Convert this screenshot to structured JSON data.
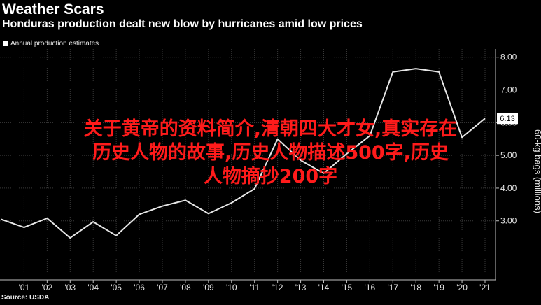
{
  "header": {
    "title": "Weather Scars",
    "subtitle": "Honduras production dealt new blow by hurricanes amid low prices",
    "legend_label": "Annual production estimates",
    "source": "Source: USDA"
  },
  "overlay": {
    "lines": [
      "关于黄帝的资料简介,清朝四大才女,真实存在",
      "历史人物的故事,历史人物描述500字,历史",
      "人物摘抄200字"
    ],
    "color": "#ff1b1b"
  },
  "colors": {
    "background": "#000000",
    "line": "#e6e6e6",
    "grid": "#3a3a3a",
    "axis": "#bfbfbf"
  },
  "chart_data": {
    "type": "line",
    "x": [
      "00",
      "01",
      "02",
      "03",
      "04",
      "05",
      "06",
      "07",
      "08",
      "09",
      "10",
      "11",
      "12",
      "13",
      "14",
      "15",
      "16",
      "17",
      "18",
      "19",
      "20",
      "21"
    ],
    "x_tick_labels": [
      "'01",
      "'02",
      "'03",
      "'04",
      "'05",
      "'06",
      "'07",
      "'08",
      "'09",
      "'10",
      "'11",
      "'12",
      "'13",
      "'14",
      "'15",
      "'16",
      "'17",
      "'18",
      "'19",
      "'20",
      "'21"
    ],
    "values": [
      3.05,
      2.8,
      3.08,
      2.48,
      2.97,
      2.55,
      3.2,
      3.45,
      3.63,
      3.22,
      3.55,
      3.98,
      5.5,
      4.85,
      4.45,
      5.05,
      5.6,
      7.55,
      7.65,
      7.55,
      5.55,
      6.13
    ],
    "last_value_label": "6.13",
    "y_ticks": [
      3,
      4,
      5,
      6,
      7,
      8
    ],
    "y_tick_labels": [
      "3.00",
      "4.00",
      "5.00",
      "6.00",
      "7.00",
      "8.00"
    ],
    "ylim": [
      1.2,
      8.25
    ],
    "ylabel": "60-kg bags (millions)",
    "grid": true,
    "y_axis_side": "right"
  }
}
